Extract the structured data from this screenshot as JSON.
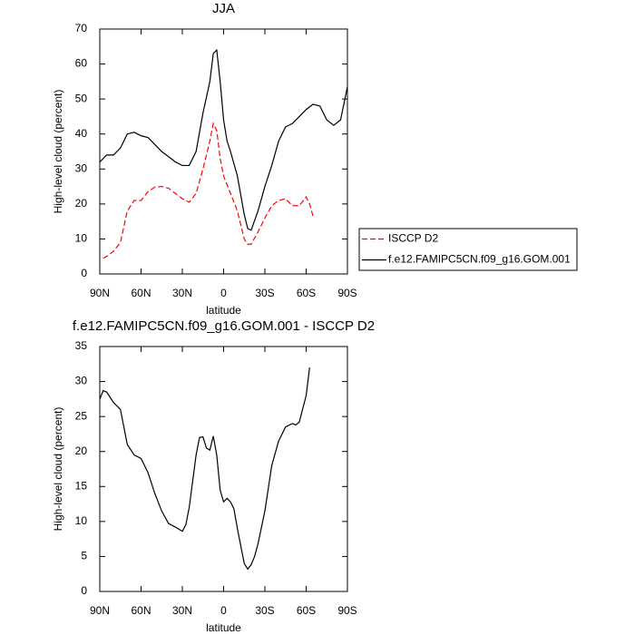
{
  "chart_data": [
    {
      "type": "line",
      "title": "JJA",
      "x_label": "latitude",
      "y_label": "High-level cloud (percent)",
      "xlim": [
        90,
        -90
      ],
      "xticks": [
        {
          "value": 90,
          "label": "90N"
        },
        {
          "value": 60,
          "label": "60N"
        },
        {
          "value": 30,
          "label": "30N"
        },
        0,
        {
          "value": -30,
          "label": "30S"
        },
        {
          "value": -60,
          "label": "60S"
        },
        {
          "value": -90,
          "label": "90S"
        }
      ],
      "ylim": [
        0,
        70
      ],
      "yticks": [
        0,
        10,
        20,
        30,
        40,
        50,
        60,
        70
      ],
      "legend": "right",
      "series": [
        {
          "name": "ISCCP D2",
          "color": "#ff0000",
          "dashed": true,
          "x": [
            87.5,
            85,
            80,
            75,
            70,
            65,
            60,
            55,
            50,
            45,
            40,
            35,
            30,
            25,
            20,
            15,
            10,
            7.5,
            5,
            2.5,
            0,
            -5,
            -10,
            -15,
            -17.5,
            -20,
            -25,
            -30,
            -35,
            -40,
            -45,
            -50,
            -55,
            -60,
            -62.5,
            -65
          ],
          "values": [
            4.5,
            5,
            6.5,
            9,
            18,
            21,
            21,
            23.5,
            24.8,
            25,
            24.5,
            23,
            21.5,
            20.5,
            23,
            30,
            38,
            43,
            41,
            33,
            28,
            23,
            18,
            10,
            8.5,
            8.5,
            12,
            16,
            19.5,
            21,
            21.5,
            19.5,
            19.5,
            22,
            20,
            16.5
          ]
        },
        {
          "name": "f.e12.FAMIPC5CN.f09_g16.GOM.001",
          "color": "#000000",
          "dashed": false,
          "x": [
            90,
            85,
            80,
            75,
            70,
            65,
            60,
            55,
            50,
            45,
            40,
            35,
            30,
            25,
            20,
            15,
            10,
            7.5,
            5,
            2.5,
            0,
            -2.5,
            -5,
            -10,
            -15,
            -17.5,
            -20,
            -25,
            -30,
            -35,
            -40,
            -45,
            -50,
            -55,
            -60,
            -65,
            -70,
            -75,
            -80,
            -85,
            -90
          ],
          "values": [
            32,
            34,
            34,
            36,
            40,
            40.5,
            39.5,
            39,
            37,
            35,
            33.5,
            32,
            31,
            31,
            35,
            46,
            55,
            63,
            64,
            55,
            44,
            38,
            35,
            28,
            17,
            13,
            12.5,
            18,
            25,
            31,
            38,
            42,
            43,
            45,
            47,
            48.5,
            48,
            44,
            42.5,
            44,
            53.5
          ]
        }
      ]
    },
    {
      "type": "line",
      "title": "f.e12.FAMIPC5CN.f09_g16.GOM.001 - ISCCP D2",
      "x_label": "latitude",
      "y_label": "High-level cloud (percent)",
      "xlim": [
        90,
        -90
      ],
      "xticks": [
        {
          "value": 90,
          "label": "90N"
        },
        {
          "value": 60,
          "label": "60N"
        },
        {
          "value": 30,
          "label": "30N"
        },
        0,
        {
          "value": -30,
          "label": "30S"
        },
        {
          "value": -60,
          "label": "60S"
        },
        {
          "value": -90,
          "label": "90S"
        }
      ],
      "ylim": [
        0,
        35
      ],
      "yticks": [
        0,
        5,
        10,
        15,
        20,
        25,
        30,
        35
      ],
      "series": [
        {
          "color": "#000000",
          "dashed": false,
          "x": [
            90,
            87.5,
            85,
            80,
            75,
            70,
            65,
            60,
            55,
            50,
            45,
            40,
            35,
            30,
            27.5,
            25,
            20,
            17.5,
            15,
            12.5,
            10,
            7.5,
            5,
            2.5,
            0,
            -2.5,
            -5,
            -7.5,
            -10,
            -12.5,
            -15,
            -17.5,
            -20,
            -22.5,
            -25,
            -30,
            -35,
            -40,
            -45,
            -50,
            -52.5,
            -55,
            -60,
            -62.5
          ],
          "values": [
            27.5,
            28.7,
            28.5,
            27,
            26,
            21,
            19.5,
            19,
            17,
            14,
            11.5,
            9.7,
            9.2,
            8.6,
            9.5,
            12,
            19.5,
            22,
            22.1,
            20.5,
            20.2,
            22.2,
            19.5,
            14.5,
            12.8,
            13.3,
            12.8,
            11.8,
            9,
            6.5,
            4,
            3.2,
            3.8,
            5,
            6.8,
            11.5,
            18,
            21.5,
            23.5,
            24,
            23.8,
            24.2,
            28,
            32
          ]
        }
      ]
    }
  ]
}
